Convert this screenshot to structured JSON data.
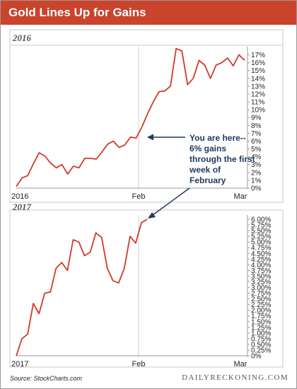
{
  "header": {
    "title": "Gold Lines Up for Gains"
  },
  "footer": {
    "source": "Source: StockCharts.com",
    "brand": "DAILYRECKONING.COM"
  },
  "annotation": {
    "lines": [
      "You are here--",
      "6% gains",
      "through the first",
      "week of",
      "February"
    ]
  },
  "colors": {
    "header": "#c9432d",
    "line": "#d03a2a",
    "annotation": "#1f3a5a"
  },
  "chart_data": [
    {
      "type": "line",
      "title": "2016",
      "x_tick_labels": [
        "2016",
        "Feb",
        "Mar"
      ],
      "y_tick_labels": [
        "0%",
        "1%",
        "2%",
        "3%",
        "4%",
        "5%",
        "6%",
        "7%",
        "8%",
        "9%",
        "10%",
        "11%",
        "12%",
        "13%",
        "14%",
        "15%",
        "16%",
        "17%"
      ],
      "ylim": [
        0,
        17.5
      ],
      "grid": "vertical-at-months",
      "series": [
        {
          "values": [
            0.2,
            1.3,
            1.6,
            3.1,
            4.5,
            4.1,
            3.2,
            2.6,
            3.0,
            1.8,
            2.8,
            2.6,
            3.8,
            3.8,
            3.7,
            4.6,
            5.6,
            6.0,
            5.2,
            5.5,
            6.5,
            6.4,
            7.8,
            9.5,
            11.0,
            12.3,
            12.4,
            13.0,
            17.8,
            17.5,
            13.2,
            14.0,
            16.3,
            15.7,
            14.0,
            15.7,
            16.0,
            16.6,
            15.6,
            17.0,
            16.3
          ]
        }
      ]
    },
    {
      "type": "line",
      "title": "2017",
      "x_tick_labels": [
        "2017",
        "Feb",
        "Mar"
      ],
      "y_tick_labels": [
        "0%",
        "0.25%",
        "0.50%",
        "0.75%",
        "1.00%",
        "1.25%",
        "1.50%",
        "1.75%",
        "2.00%",
        "2.25%",
        "2.50%",
        "2.75%",
        "3.00%",
        "3.25%",
        "3.50%",
        "3.75%",
        "4.00%",
        "4.25%",
        "4.50%",
        "4.75%",
        "5.00%",
        "5.25%",
        "5.50%",
        "5.75%",
        "6.00%"
      ],
      "ylim": [
        0,
        6.0
      ],
      "grid": "vertical-at-months",
      "series": [
        {
          "values": [
            0.0,
            0.75,
            0.95,
            2.3,
            1.85,
            2.75,
            2.8,
            3.85,
            4.1,
            3.75,
            5.1,
            5.0,
            4.4,
            4.55,
            5.4,
            5.2,
            3.85,
            3.3,
            3.2,
            3.85,
            5.25,
            4.95,
            5.85,
            6.0
          ]
        }
      ]
    }
  ]
}
